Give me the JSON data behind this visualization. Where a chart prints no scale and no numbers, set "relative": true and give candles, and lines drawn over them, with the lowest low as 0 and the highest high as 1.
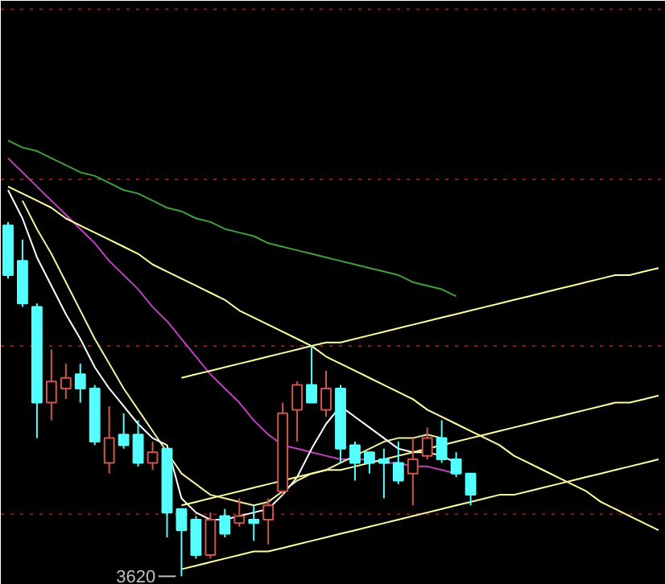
{
  "chart_data": {
    "type": "candlestick",
    "relative": true,
    "categories": [
      null,
      null,
      null,
      null,
      null,
      null,
      null,
      null,
      null,
      null,
      null,
      null,
      null,
      null,
      null,
      null,
      null,
      null,
      null,
      null,
      null,
      null,
      null,
      null,
      null,
      null,
      null,
      null,
      null,
      null,
      null,
      null,
      null,
      null,
      null,
      null,
      null,
      null,
      null,
      null,
      null,
      null,
      null,
      null,
      null,
      null
    ],
    "ohlc": [
      [
        0.99,
        1.0,
        0.84,
        0.85
      ],
      [
        0.89,
        0.95,
        0.76,
        0.77
      ],
      [
        0.76,
        0.77,
        0.39,
        0.49
      ],
      [
        0.49,
        0.64,
        0.44,
        0.55
      ],
      [
        0.53,
        0.6,
        0.5,
        0.56
      ],
      [
        0.57,
        0.6,
        0.49,
        0.53
      ],
      [
        0.53,
        0.54,
        0.37,
        0.38
      ],
      [
        0.32,
        0.48,
        0.29,
        0.39
      ],
      [
        0.4,
        0.46,
        0.36,
        0.37
      ],
      [
        0.4,
        0.44,
        0.31,
        0.32
      ],
      [
        0.32,
        0.38,
        0.3,
        0.35
      ],
      [
        0.36,
        0.36,
        0.11,
        0.18
      ],
      [
        0.19,
        0.19,
        0.0,
        0.13
      ],
      [
        0.16,
        0.17,
        0.05,
        0.06
      ],
      [
        0.06,
        0.18,
        0.05,
        0.16
      ],
      [
        0.17,
        0.19,
        0.11,
        0.12
      ],
      [
        0.15,
        0.22,
        0.14,
        0.17
      ],
      [
        0.16,
        0.2,
        0.1,
        0.15
      ],
      [
        0.16,
        0.22,
        0.09,
        0.2
      ],
      [
        0.24,
        0.49,
        0.23,
        0.46
      ],
      [
        0.47,
        0.55,
        0.38,
        0.54
      ],
      [
        0.54,
        0.65,
        0.49,
        0.49
      ],
      [
        0.47,
        0.58,
        0.45,
        0.53
      ],
      [
        0.53,
        0.54,
        0.32,
        0.36
      ],
      [
        0.37,
        0.38,
        0.27,
        0.32
      ],
      [
        0.35,
        0.35,
        0.29,
        0.32
      ],
      [
        0.33,
        0.36,
        0.22,
        0.32
      ],
      [
        0.32,
        0.38,
        0.26,
        0.27
      ],
      [
        0.29,
        0.39,
        0.2,
        0.33
      ],
      [
        0.34,
        0.42,
        0.33,
        0.39
      ],
      [
        0.39,
        0.44,
        0.32,
        0.33
      ],
      [
        0.33,
        0.35,
        0.28,
        0.29
      ],
      [
        0.29,
        0.29,
        0.2,
        0.23
      ],
      null,
      null,
      null,
      null,
      null,
      null,
      null,
      null,
      null,
      null,
      null,
      null,
      null
    ],
    "colors": [
      "#54ffff",
      "#54ffff",
      "#54ffff",
      "#d0574f",
      "#d0574f",
      "#54ffff",
      "#54ffff",
      "#d0574f",
      "#54ffff",
      "#54ffff",
      "#d0574f",
      "#54ffff",
      "#54ffff",
      "#54ffff",
      "#d0574f",
      "#54ffff",
      "#d0574f",
      "#54ffff",
      "#d0574f",
      "#d0574f",
      "#d0574f",
      "#54ffff",
      "#d0574f",
      "#54ffff",
      "#54ffff",
      "#54ffff",
      "#54ffff",
      "#54ffff",
      "#d0574f",
      "#d0574f",
      "#54ffff",
      "#54ffff",
      "#54ffff",
      null,
      null,
      null,
      null,
      null,
      null,
      null,
      null,
      null,
      null,
      null,
      null,
      null
    ],
    "series": [
      {
        "type": "line",
        "color": "#40a040",
        "values": [
          1.23,
          1.21,
          1.2,
          1.18,
          1.16,
          1.14,
          1.13,
          1.11,
          1.09,
          1.08,
          1.06,
          1.04,
          1.03,
          1.01,
          1.0,
          0.98,
          0.97,
          0.96,
          0.94,
          0.93,
          0.92,
          0.91,
          0.9,
          0.89,
          0.88,
          0.87,
          0.86,
          0.85,
          0.83,
          0.82,
          0.81,
          0.79,
          null,
          null,
          null,
          null,
          null,
          null,
          null,
          null,
          null,
          null,
          null,
          null,
          null,
          null
        ]
      },
      {
        "type": "line",
        "color": "#c040c0",
        "values": [
          1.18,
          1.14,
          1.1,
          1.06,
          1.02,
          0.98,
          0.94,
          0.89,
          0.85,
          0.81,
          0.76,
          0.72,
          0.67,
          0.62,
          0.57,
          0.53,
          0.49,
          0.44,
          0.4,
          0.37,
          0.36,
          0.35,
          0.34,
          0.33,
          0.33,
          0.33,
          0.32,
          0.32,
          0.31,
          0.31,
          0.3,
          0.29,
          null,
          null,
          null,
          null,
          null,
          null,
          null,
          null,
          null,
          null,
          null,
          null,
          null,
          null
        ]
      },
      {
        "type": "line",
        "color": "#f0f0a0",
        "values": [
          null,
          1.06,
          0.98,
          0.91,
          0.83,
          0.75,
          0.67,
          0.6,
          0.53,
          0.47,
          0.41,
          0.35,
          0.29,
          0.26,
          0.23,
          0.22,
          0.21,
          0.2,
          0.21,
          0.24,
          0.27,
          0.29,
          0.3,
          0.32,
          0.34,
          0.36,
          0.38,
          0.39,
          0.39,
          0.4,
          0.39,
          null,
          null,
          null,
          null,
          null,
          null,
          null,
          null,
          null,
          null,
          null,
          null,
          null,
          null,
          null
        ]
      },
      {
        "type": "line",
        "color": "#ffffff",
        "values": [
          1.09,
          1.01,
          0.9,
          0.82,
          0.74,
          0.67,
          0.59,
          0.53,
          0.48,
          0.43,
          0.39,
          0.37,
          0.22,
          0.18,
          0.16,
          0.16,
          0.17,
          0.18,
          0.19,
          0.23,
          0.28,
          0.36,
          0.43,
          0.48,
          0.45,
          0.42,
          0.39,
          0.36,
          0.35,
          0.35,
          0.34,
          0.32,
          null,
          null,
          null,
          null,
          null,
          null,
          null,
          null,
          null,
          null,
          null,
          null,
          null,
          null
        ]
      },
      {
        "type": "line",
        "color": "#ffffa0",
        "values": [
          1.1,
          1.08,
          1.06,
          1.04,
          1.01,
          0.99,
          0.97,
          0.95,
          0.93,
          0.91,
          0.88,
          0.86,
          0.84,
          0.82,
          0.8,
          0.78,
          0.75,
          0.73,
          0.71,
          0.69,
          0.67,
          0.65,
          0.62,
          0.6,
          0.58,
          0.56,
          0.54,
          0.52,
          0.5,
          0.47,
          0.45,
          0.43,
          0.41,
          0.39,
          0.37,
          0.34,
          0.32,
          0.3,
          0.28,
          0.26,
          0.24,
          0.21,
          0.19,
          0.17,
          0.15,
          0.13
        ]
      },
      {
        "type": "line",
        "color": "#ffffa0",
        "values": [
          null,
          null,
          null,
          null,
          null,
          null,
          null,
          null,
          null,
          null,
          null,
          null,
          0.56,
          0.57,
          0.58,
          0.59,
          0.6,
          0.61,
          0.62,
          0.63,
          0.64,
          0.65,
          0.66,
          0.66,
          0.67,
          0.68,
          0.69,
          0.7,
          0.71,
          0.72,
          0.73,
          0.74,
          0.75,
          0.76,
          0.77,
          0.78,
          0.79,
          0.8,
          0.81,
          0.82,
          0.83,
          0.84,
          0.85,
          0.85,
          0.86,
          0.87
        ]
      },
      {
        "type": "line",
        "color": "#ffffa0",
        "values": [
          null,
          null,
          null,
          null,
          null,
          null,
          null,
          null,
          null,
          null,
          null,
          null,
          0.2,
          0.21,
          0.22,
          0.23,
          0.24,
          0.25,
          0.26,
          0.27,
          0.28,
          0.29,
          0.3,
          0.3,
          0.31,
          0.32,
          0.33,
          0.34,
          0.35,
          0.36,
          0.37,
          0.38,
          0.39,
          0.4,
          0.41,
          0.42,
          0.43,
          0.44,
          0.45,
          0.46,
          0.47,
          0.48,
          0.49,
          0.49,
          0.5,
          0.51
        ]
      },
      {
        "type": "line",
        "color": "#ffffa0",
        "values": [
          null,
          null,
          null,
          null,
          null,
          null,
          null,
          null,
          null,
          null,
          null,
          null,
          0.02,
          0.03,
          0.04,
          0.05,
          0.06,
          0.07,
          0.07,
          0.08,
          0.09,
          0.1,
          0.11,
          0.12,
          0.13,
          0.14,
          0.15,
          0.16,
          0.17,
          0.18,
          0.19,
          0.2,
          0.21,
          0.22,
          0.23,
          0.23,
          0.24,
          0.25,
          0.26,
          0.27,
          0.28,
          0.29,
          0.3,
          0.31,
          0.32,
          0.33
        ]
      }
    ],
    "ref_lines": [
      {
        "axis": "y",
        "value": 1.6,
        "color": "#8b1a1a",
        "line_style": "dotted"
      },
      {
        "axis": "y",
        "value": 1.12,
        "color": "#8b1a1a",
        "line_style": "dotted"
      },
      {
        "axis": "y",
        "value": 0.65,
        "color": "#8b1a1a",
        "line_style": "dotted"
      },
      {
        "axis": "y",
        "value": 0.175,
        "color": "#8b1a1a",
        "line_style": "dotted"
      }
    ],
    "annotations": [
      "3620"
    ]
  }
}
